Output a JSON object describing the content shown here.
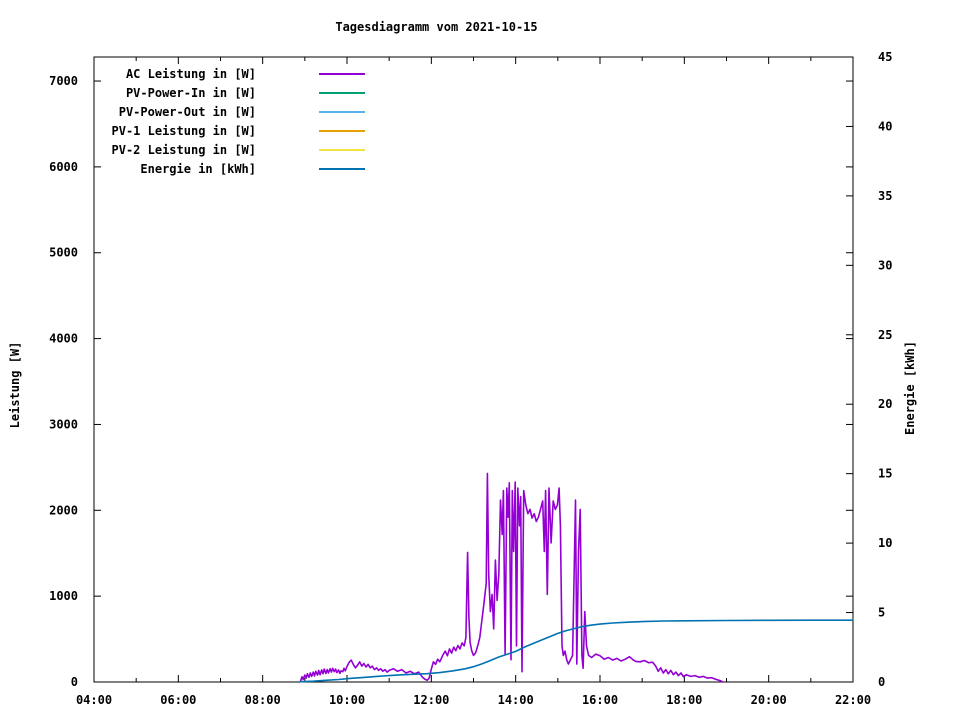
{
  "title": "Tagesdiagramm vom 2021-10-15",
  "axes": {
    "y1_label": "Leistung [W]",
    "y2_label": "Energie [kWh]"
  },
  "chart_data": {
    "type": "line",
    "title": "Tagesdiagramm vom 2021-10-15",
    "xlabel": "",
    "y1_label": "Leistung [W]",
    "y2_label": "Energie [kWh]",
    "x_range_hours": [
      4,
      22
    ],
    "x_tick_hours": [
      4,
      6,
      8,
      10,
      12,
      14,
      16,
      18,
      20,
      22
    ],
    "x_tick_labels": [
      "04:00",
      "06:00",
      "08:00",
      "10:00",
      "12:00",
      "14:00",
      "16:00",
      "18:00",
      "20:00",
      "22:00"
    ],
    "x_minor_tick_step_hours": 1,
    "y1_range": [
      0,
      7280
    ],
    "y1_ticks": [
      0,
      1000,
      2000,
      3000,
      4000,
      5000,
      6000,
      7000
    ],
    "y2_range": [
      0,
      45
    ],
    "y2_ticks": [
      0,
      5,
      10,
      15,
      20,
      25,
      30,
      35,
      40,
      45
    ],
    "grid": "off",
    "legend_position": "top-left-inside",
    "background": "#ffffff",
    "series": [
      {
        "name": "AC Leistung in [W]",
        "axis": "y1",
        "color": "#9400d3",
        "points": [
          [
            8.9,
            10
          ],
          [
            8.93,
            60
          ],
          [
            8.96,
            30
          ],
          [
            9.0,
            80
          ],
          [
            9.03,
            45
          ],
          [
            9.06,
            95
          ],
          [
            9.1,
            55
          ],
          [
            9.13,
            105
          ],
          [
            9.16,
            65
          ],
          [
            9.2,
            115
          ],
          [
            9.23,
            70
          ],
          [
            9.26,
            125
          ],
          [
            9.3,
            80
          ],
          [
            9.33,
            135
          ],
          [
            9.36,
            85
          ],
          [
            9.4,
            140
          ],
          [
            9.43,
            95
          ],
          [
            9.46,
            150
          ],
          [
            9.5,
            100
          ],
          [
            9.53,
            145
          ],
          [
            9.56,
            105
          ],
          [
            9.6,
            155
          ],
          [
            9.63,
            115
          ],
          [
            9.66,
            160
          ],
          [
            9.7,
            120
          ],
          [
            9.73,
            150
          ],
          [
            9.76,
            110
          ],
          [
            9.8,
            140
          ],
          [
            9.83,
            100
          ],
          [
            9.86,
            130
          ],
          [
            9.9,
            120
          ],
          [
            9.93,
            160
          ],
          [
            9.96,
            130
          ],
          [
            10.0,
            180
          ],
          [
            10.05,
            230
          ],
          [
            10.1,
            255
          ],
          [
            10.15,
            205
          ],
          [
            10.2,
            165
          ],
          [
            10.25,
            195
          ],
          [
            10.3,
            235
          ],
          [
            10.35,
            185
          ],
          [
            10.4,
            215
          ],
          [
            10.45,
            175
          ],
          [
            10.5,
            205
          ],
          [
            10.55,
            165
          ],
          [
            10.6,
            185
          ],
          [
            10.65,
            145
          ],
          [
            10.7,
            165
          ],
          [
            10.75,
            135
          ],
          [
            10.8,
            155
          ],
          [
            10.85,
            125
          ],
          [
            10.9,
            145
          ],
          [
            10.95,
            115
          ],
          [
            11.0,
            135
          ],
          [
            11.1,
            155
          ],
          [
            11.2,
            125
          ],
          [
            11.3,
            145
          ],
          [
            11.4,
            105
          ],
          [
            11.5,
            125
          ],
          [
            11.6,
            95
          ],
          [
            11.7,
            115
          ],
          [
            11.78,
            60
          ],
          [
            11.84,
            35
          ],
          [
            11.9,
            20
          ],
          [
            11.95,
            45
          ],
          [
            12.0,
            150
          ],
          [
            12.05,
            235
          ],
          [
            12.1,
            205
          ],
          [
            12.15,
            265
          ],
          [
            12.2,
            235
          ],
          [
            12.27,
            310
          ],
          [
            12.33,
            360
          ],
          [
            12.38,
            305
          ],
          [
            12.43,
            385
          ],
          [
            12.48,
            335
          ],
          [
            12.53,
            405
          ],
          [
            12.58,
            365
          ],
          [
            12.63,
            425
          ],
          [
            12.68,
            385
          ],
          [
            12.73,
            455
          ],
          [
            12.78,
            420
          ],
          [
            12.82,
            520
          ],
          [
            12.86,
            1510
          ],
          [
            12.89,
            750
          ],
          [
            12.92,
            460
          ],
          [
            12.96,
            360
          ],
          [
            13.0,
            310
          ],
          [
            13.05,
            340
          ],
          [
            13.1,
            420
          ],
          [
            13.15,
            520
          ],
          [
            13.2,
            720
          ],
          [
            13.25,
            920
          ],
          [
            13.3,
            1150
          ],
          [
            13.33,
            2430
          ],
          [
            13.36,
            1250
          ],
          [
            13.4,
            820
          ],
          [
            13.44,
            1020
          ],
          [
            13.48,
            620
          ],
          [
            13.52,
            1420
          ],
          [
            13.56,
            950
          ],
          [
            13.6,
            1250
          ],
          [
            13.64,
            2120
          ],
          [
            13.68,
            1720
          ],
          [
            13.71,
            2230
          ],
          [
            13.75,
            320
          ],
          [
            13.79,
            2260
          ],
          [
            13.82,
            1920
          ],
          [
            13.85,
            2320
          ],
          [
            13.89,
            260
          ],
          [
            13.92,
            2230
          ],
          [
            13.95,
            1520
          ],
          [
            13.99,
            2330
          ],
          [
            14.02,
            420
          ],
          [
            14.05,
            2260
          ],
          [
            14.09,
            1820
          ],
          [
            14.12,
            2160
          ],
          [
            14.15,
            120
          ],
          [
            14.19,
            2230
          ],
          [
            14.24,
            2060
          ],
          [
            14.29,
            1960
          ],
          [
            14.34,
            2010
          ],
          [
            14.39,
            1910
          ],
          [
            14.44,
            1960
          ],
          [
            14.49,
            1870
          ],
          [
            14.54,
            1920
          ],
          [
            14.59,
            2010
          ],
          [
            14.64,
            2110
          ],
          [
            14.68,
            1520
          ],
          [
            14.71,
            2230
          ],
          [
            14.75,
            1020
          ],
          [
            14.79,
            2260
          ],
          [
            14.84,
            1620
          ],
          [
            14.89,
            2110
          ],
          [
            14.94,
            2010
          ],
          [
            14.99,
            2060
          ],
          [
            15.03,
            2260
          ],
          [
            15.06,
            1820
          ],
          [
            15.1,
            420
          ],
          [
            15.13,
            310
          ],
          [
            15.17,
            360
          ],
          [
            15.21,
            260
          ],
          [
            15.25,
            210
          ],
          [
            15.3,
            260
          ],
          [
            15.35,
            310
          ],
          [
            15.42,
            2120
          ],
          [
            15.45,
            210
          ],
          [
            15.49,
            1520
          ],
          [
            15.53,
            2010
          ],
          [
            15.57,
            310
          ],
          [
            15.6,
            160
          ],
          [
            15.64,
            820
          ],
          [
            15.68,
            420
          ],
          [
            15.73,
            310
          ],
          [
            15.8,
            285
          ],
          [
            15.9,
            325
          ],
          [
            16.0,
            305
          ],
          [
            16.1,
            265
          ],
          [
            16.2,
            285
          ],
          [
            16.3,
            255
          ],
          [
            16.4,
            275
          ],
          [
            16.5,
            245
          ],
          [
            16.6,
            265
          ],
          [
            16.7,
            295
          ],
          [
            16.78,
            260
          ],
          [
            16.85,
            240
          ],
          [
            16.95,
            235
          ],
          [
            17.05,
            250
          ],
          [
            17.15,
            225
          ],
          [
            17.25,
            230
          ],
          [
            17.32,
            185
          ],
          [
            17.38,
            125
          ],
          [
            17.44,
            165
          ],
          [
            17.5,
            105
          ],
          [
            17.56,
            145
          ],
          [
            17.62,
            95
          ],
          [
            17.68,
            135
          ],
          [
            17.74,
            85
          ],
          [
            17.8,
            115
          ],
          [
            17.86,
            75
          ],
          [
            17.92,
            105
          ],
          [
            17.98,
            60
          ],
          [
            18.05,
            85
          ],
          [
            18.15,
            65
          ],
          [
            18.25,
            75
          ],
          [
            18.35,
            55
          ],
          [
            18.45,
            65
          ],
          [
            18.55,
            45
          ],
          [
            18.65,
            50
          ],
          [
            18.75,
            30
          ],
          [
            18.85,
            15
          ],
          [
            18.92,
            0
          ]
        ]
      },
      {
        "name": "PV-Power-In in [W]",
        "axis": "y1",
        "color": "#009e73",
        "points": []
      },
      {
        "name": "PV-Power-Out in [W]",
        "axis": "y1",
        "color": "#56b4e9",
        "points": []
      },
      {
        "name": "PV-1 Leistung in [W]",
        "axis": "y1",
        "color": "#e69f00",
        "points": []
      },
      {
        "name": "PV-2 Leistung in [W]",
        "axis": "y1",
        "color": "#f0e442",
        "points": []
      },
      {
        "name": "Energie in [kWh]",
        "axis": "y2",
        "color": "#0072b2",
        "points": [
          [
            8.9,
            0.02
          ],
          [
            9.2,
            0.06
          ],
          [
            9.5,
            0.12
          ],
          [
            9.8,
            0.18
          ],
          [
            10.1,
            0.27
          ],
          [
            10.4,
            0.33
          ],
          [
            10.7,
            0.4
          ],
          [
            11.0,
            0.46
          ],
          [
            11.3,
            0.52
          ],
          [
            11.6,
            0.56
          ],
          [
            11.9,
            0.6
          ],
          [
            12.2,
            0.68
          ],
          [
            12.5,
            0.8
          ],
          [
            12.8,
            0.95
          ],
          [
            13.0,
            1.1
          ],
          [
            13.2,
            1.3
          ],
          [
            13.4,
            1.55
          ],
          [
            13.6,
            1.8
          ],
          [
            13.8,
            2.0
          ],
          [
            14.0,
            2.2
          ],
          [
            14.2,
            2.5
          ],
          [
            14.4,
            2.75
          ],
          [
            14.6,
            3.0
          ],
          [
            14.8,
            3.25
          ],
          [
            15.0,
            3.5
          ],
          [
            15.2,
            3.7
          ],
          [
            15.4,
            3.85
          ],
          [
            15.6,
            4.0
          ],
          [
            15.8,
            4.1
          ],
          [
            16.0,
            4.17
          ],
          [
            16.3,
            4.25
          ],
          [
            16.6,
            4.3
          ],
          [
            17.0,
            4.35
          ],
          [
            17.5,
            4.39
          ],
          [
            18.0,
            4.41
          ],
          [
            19.0,
            4.43
          ],
          [
            20.0,
            4.44
          ],
          [
            21.0,
            4.45
          ],
          [
            22.0,
            4.45
          ]
        ]
      }
    ]
  }
}
